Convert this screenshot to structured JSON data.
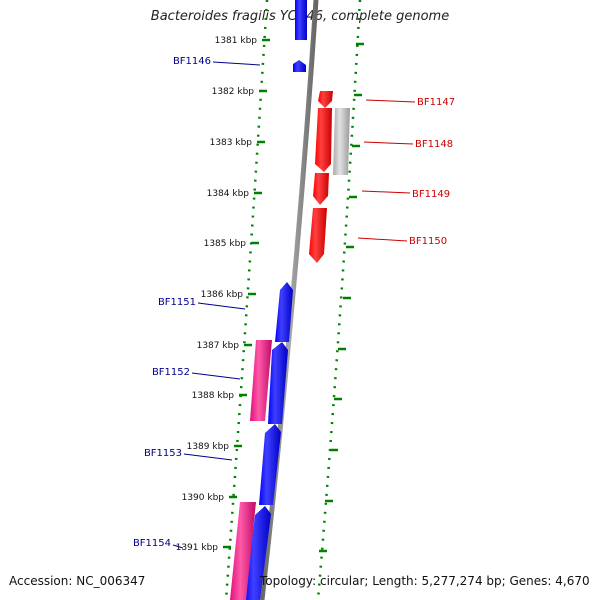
{
  "title": "Bacteroides fragilis YCH46, complete genome",
  "accession_text": "Accession: NC_006347",
  "summary_text": "Topology: circular; Length: 5,277,274 bp; Genes: 4,670",
  "colors": {
    "forward_gene": "#0000ff",
    "reverse_gene": "#ff0000",
    "pink_gene": "#ff1493",
    "grey_gene": "#bbbbbb",
    "backbone": "#888888",
    "tick": "#008000",
    "forward_label": "#00008b",
    "reverse_label": "#cc0000"
  },
  "scale": {
    "unit": "kbp",
    "ticks": [
      "1381 kbp",
      "1382 kbp",
      "1383 kbp",
      "1384 kbp",
      "1385 kbp",
      "1386 kbp",
      "1387 kbp",
      "1388 kbp",
      "1389 kbp",
      "1390 kbp",
      "1391 kbp"
    ]
  },
  "gene_labels": {
    "forward": [
      "BF1146",
      "BF1151",
      "BF1152",
      "BF1153",
      "BF1154"
    ],
    "reverse": [
      "BF1147",
      "BF1148",
      "BF1149",
      "BF1150"
    ]
  }
}
